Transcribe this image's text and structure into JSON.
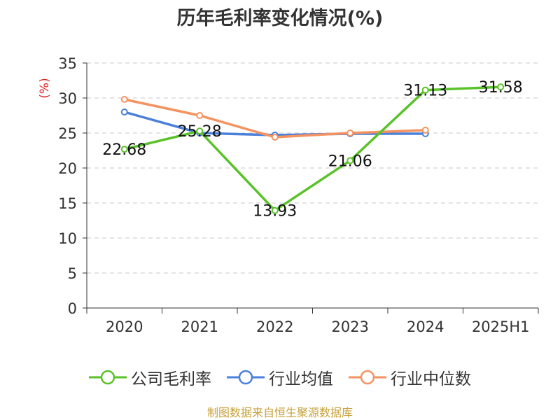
{
  "chart_data": {
    "type": "line",
    "title": "历年毛利率变化情况(%)",
    "ylabel": "(%)",
    "xlabel": "",
    "categories": [
      "2020",
      "2021",
      "2022",
      "2023",
      "2024",
      "2025H1"
    ],
    "ylim": [
      0,
      35
    ],
    "yticks": [
      0,
      5,
      10,
      15,
      20,
      25,
      30,
      35
    ],
    "grid": true,
    "legend_position": "bottom",
    "series": [
      {
        "name": "公司毛利率",
        "color": "#5ac229",
        "values": [
          22.68,
          25.28,
          13.93,
          21.06,
          31.13,
          31.58
        ],
        "show_labels": true
      },
      {
        "name": "行业均值",
        "color": "#4a80d9",
        "values": [
          28.0,
          25.0,
          24.7,
          24.9,
          24.9,
          null
        ],
        "show_labels": false
      },
      {
        "name": "行业中位数",
        "color": "#f59360",
        "values": [
          29.8,
          27.5,
          24.4,
          25.0,
          25.4,
          null
        ],
        "show_labels": false
      }
    ]
  },
  "footer": "制图数据来自恒生聚源数据库"
}
